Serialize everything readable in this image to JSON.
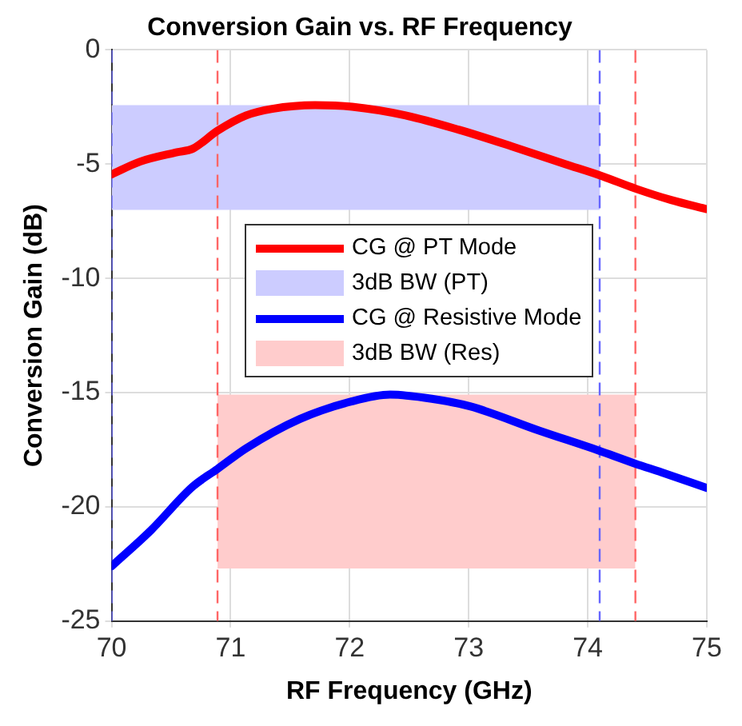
{
  "chart_data": {
    "type": "line",
    "title": "Conversion Gain vs. RF Frequency",
    "xlabel": "RF Frequency (GHz)",
    "ylabel": "Conversion Gain (dB)",
    "xlim": [
      70,
      75
    ],
    "xticks": [
      70,
      71,
      72,
      73,
      74,
      75
    ],
    "ylim": [
      -25,
      0
    ],
    "yticks": [
      -25,
      -20,
      -15,
      -10,
      -5,
      0
    ],
    "grid": true,
    "legend": "top",
    "line_style": "solid",
    "marker": "none",
    "series": [
      {
        "name": "CG @ PT Mode",
        "type": "line",
        "color": "#ff0000",
        "x": [
          70,
          70.24,
          70.55,
          70.68,
          70.89,
          71.13,
          71.35,
          71.71,
          72.02,
          72.47,
          72.92,
          73.36,
          73.81,
          74.1,
          74.4,
          74.7,
          75
        ],
        "values": [
          -5.45,
          -4.89,
          -4.48,
          -4.33,
          -3.54,
          -2.87,
          -2.58,
          -2.42,
          -2.49,
          -2.87,
          -3.5,
          -4.22,
          -5,
          -5.49,
          -6.07,
          -6.57,
          -6.97
        ]
      },
      {
        "name": "3dB BW (PT)",
        "type": "area",
        "color": "#ccccff",
        "x": [
          70,
          74.1
        ],
        "values": [
          null,
          null
        ],
        "upper": [
          -2.42,
          -2.42
        ],
        "lower": [
          -7,
          -7
        ]
      },
      {
        "name": "CG @ Resistive Mode",
        "type": "line",
        "color": "#0000ff",
        "x": [
          70,
          70.33,
          70.68,
          70.89,
          71.13,
          71.58,
          72.02,
          72.34,
          72.69,
          73.01,
          73.59,
          74.1,
          74.4,
          74.62,
          75
        ],
        "values": [
          -22.6,
          -21.03,
          -19.12,
          -18.34,
          -17.44,
          -16.16,
          -15.38,
          -15.09,
          -15.27,
          -15.6,
          -16.66,
          -17.55,
          -18.11,
          -18.49,
          -19.17
        ]
      },
      {
        "name": "3dB BW (Res)",
        "type": "area",
        "color": "#ffcccc",
        "x": [
          70.89,
          74.4
        ],
        "values": [
          null,
          null
        ],
        "upper": [
          -15.09,
          -15.09
        ],
        "lower": [
          -22.7,
          -22.7
        ]
      }
    ],
    "ref_lines": [
      {
        "axis": "x",
        "value": 70,
        "color": "#6666ff",
        "line_style": "dashed"
      },
      {
        "axis": "x",
        "value": 70.89,
        "color": "#ff6666",
        "line_style": "dashed"
      },
      {
        "axis": "x",
        "value": 74.1,
        "color": "#6666ff",
        "line_style": "dashed"
      },
      {
        "axis": "x",
        "value": 74.4,
        "color": "#ff6666",
        "line_style": "dashed"
      }
    ]
  }
}
